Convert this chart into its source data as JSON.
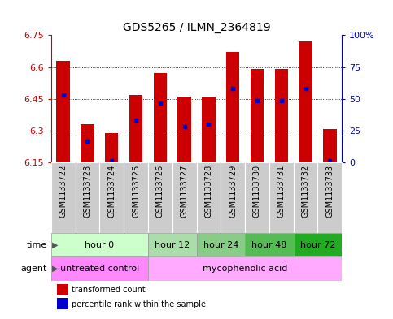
{
  "title": "GDS5265 / ILMN_2364819",
  "samples": [
    "GSM1133722",
    "GSM1133723",
    "GSM1133724",
    "GSM1133725",
    "GSM1133726",
    "GSM1133727",
    "GSM1133728",
    "GSM1133729",
    "GSM1133730",
    "GSM1133731",
    "GSM1133732",
    "GSM1133733"
  ],
  "bar_values": [
    6.63,
    6.33,
    6.29,
    6.47,
    6.57,
    6.46,
    6.46,
    6.67,
    6.59,
    6.59,
    6.72,
    6.31
  ],
  "percentile_values": [
    6.47,
    6.25,
    6.16,
    6.35,
    6.43,
    6.32,
    6.33,
    6.5,
    6.44,
    6.44,
    6.5,
    6.16
  ],
  "ymin": 6.15,
  "ymax": 6.75,
  "yticks": [
    6.15,
    6.3,
    6.45,
    6.6,
    6.75
  ],
  "ytick_labels": [
    "6.15",
    "6.3",
    "6.45",
    "6.6",
    "6.75"
  ],
  "right_yticks_pct": [
    0,
    25,
    50,
    75,
    100
  ],
  "right_ytick_labels": [
    "0",
    "25",
    "50",
    "75",
    "100%"
  ],
  "grid_yticks": [
    6.3,
    6.45,
    6.6
  ],
  "bar_color": "#cc0000",
  "percentile_color": "#0000cc",
  "bg_color": "#ffffff",
  "left_axis_color": "#cc0000",
  "right_axis_color": "#0000cc",
  "sample_bg_color": "#cccccc",
  "time_groups": [
    {
      "label": "hour 0",
      "start": 0,
      "end": 4,
      "color": "#ccffcc"
    },
    {
      "label": "hour 12",
      "start": 4,
      "end": 6,
      "color": "#aaddaa"
    },
    {
      "label": "hour 24",
      "start": 6,
      "end": 8,
      "color": "#88cc88"
    },
    {
      "label": "hour 48",
      "start": 8,
      "end": 10,
      "color": "#55bb55"
    },
    {
      "label": "hour 72",
      "start": 10,
      "end": 12,
      "color": "#22aa22"
    }
  ],
  "agent_groups": [
    {
      "label": "untreated control",
      "start": 0,
      "end": 4,
      "color": "#ff88ff"
    },
    {
      "label": "mycophenolic acid",
      "start": 4,
      "end": 12,
      "color": "#ffaaff"
    }
  ],
  "legend_items": [
    {
      "label": "transformed count",
      "color": "#cc0000"
    },
    {
      "label": "percentile rank within the sample",
      "color": "#0000cc"
    }
  ],
  "bar_width": 0.55,
  "title_fontsize": 10,
  "axis_fontsize": 8,
  "tick_fontsize": 7,
  "row_fontsize": 8,
  "legend_fontsize": 7
}
